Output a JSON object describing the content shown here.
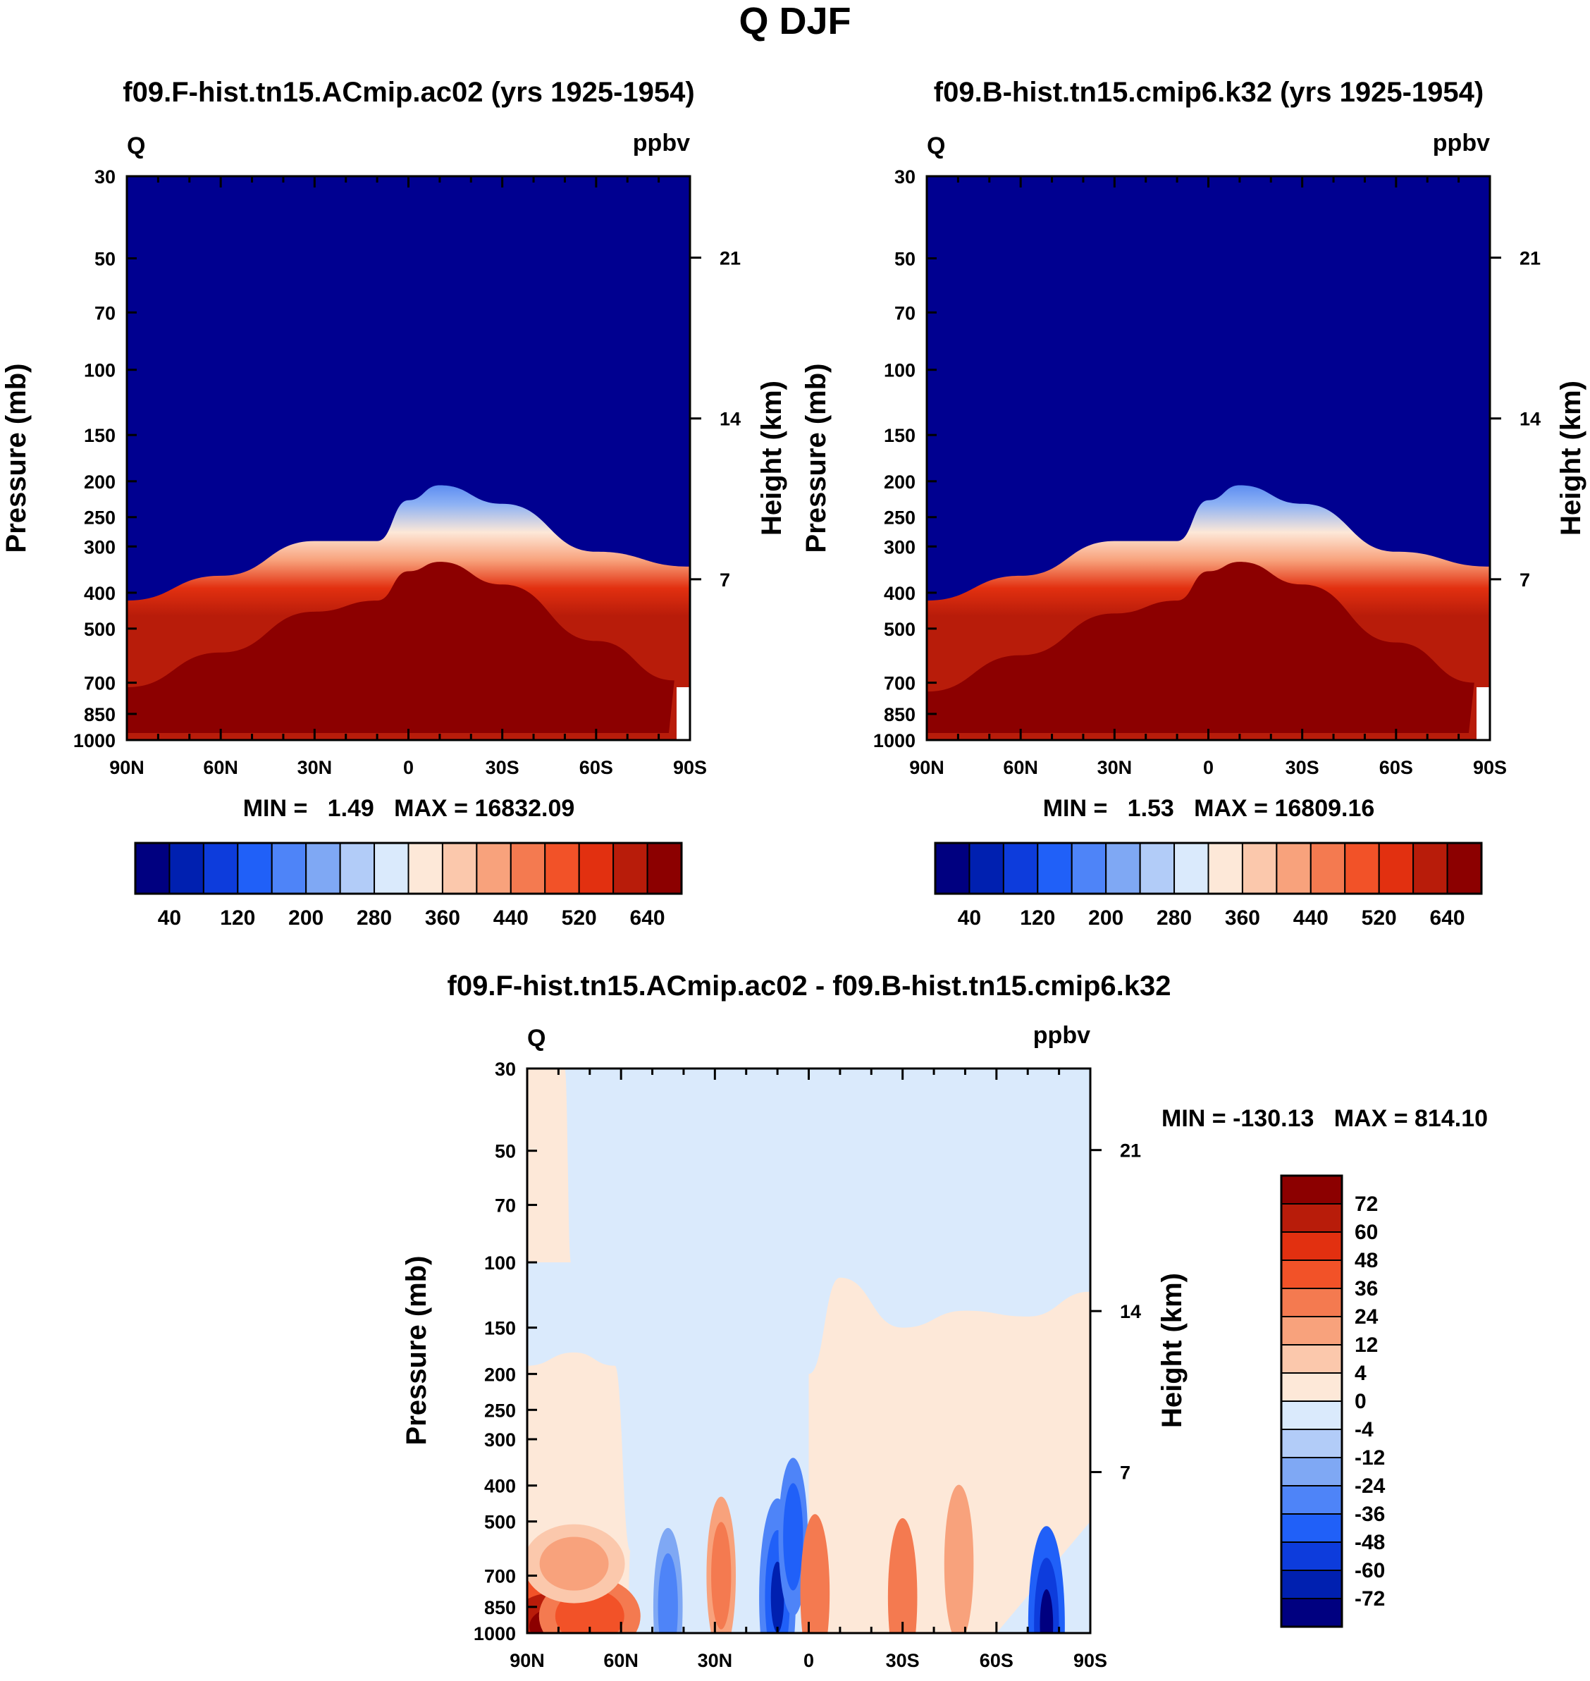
{
  "page_title": "Q DJF",
  "colors": {
    "ctrl_bar": [
      "#000080",
      "#0020b0",
      "#0d3cdc",
      "#2060f8",
      "#4e84f8",
      "#7fa8f4",
      "#b2ccf8",
      "#daeafc",
      "#fde8d8",
      "#fbc8ac",
      "#f8a27c",
      "#f47a50",
      "#f25228",
      "#e23010",
      "#b81c0a",
      "#8c0000"
    ],
    "diff_bar": [
      "#000080",
      "#0020b0",
      "#0d3cdc",
      "#2060f8",
      "#4e84f8",
      "#7fa8f4",
      "#b2ccf8",
      "#daeafc",
      "#fde8d8",
      "#fbc8ac",
      "#f8a27c",
      "#f47a50",
      "#f25228",
      "#e23010",
      "#b81c0a",
      "#8c0000"
    ]
  },
  "chart_data": [
    {
      "type": "heatmap",
      "title": "f09.F-hist.tn15.ACmip.ac02 (yrs 1925-1954)",
      "variable": "Q",
      "units": "ppbv",
      "ylabel": "Pressure (mb)",
      "y2label": "Height (km)",
      "x_ticks": [
        "90N",
        "60N",
        "30N",
        "0",
        "30S",
        "60S",
        "90S"
      ],
      "y_ticks": [
        30,
        50,
        70,
        100,
        150,
        200,
        250,
        300,
        400,
        500,
        700,
        850,
        1000
      ],
      "y2_ticks": [
        21,
        14,
        7
      ],
      "stats": "MIN =   1.49   MAX = 16832.09",
      "colorbar_labels": [
        "40",
        "120",
        "200",
        "280",
        "360",
        "440",
        "520",
        "640"
      ],
      "interface_mb": [
        {
          "lat": 90,
          "p": 420
        },
        {
          "lat": 60,
          "p": 360
        },
        {
          "lat": 30,
          "p": 290
        },
        {
          "lat": 10,
          "p": 290
        },
        {
          "lat": 0,
          "p": 225
        },
        {
          "lat": -10,
          "p": 205
        },
        {
          "lat": -30,
          "p": 230
        },
        {
          "lat": -60,
          "p": 310
        },
        {
          "lat": -90,
          "p": 340
        }
      ],
      "moist_top_mb": [
        {
          "lat": 90,
          "p": 720
        },
        {
          "lat": 60,
          "p": 580
        },
        {
          "lat": 30,
          "p": 450
        },
        {
          "lat": 10,
          "p": 420
        },
        {
          "lat": 0,
          "p": 350
        },
        {
          "lat": -10,
          "p": 330
        },
        {
          "lat": -30,
          "p": 380
        },
        {
          "lat": -60,
          "p": 540
        },
        {
          "lat": -85,
          "p": 690
        }
      ]
    },
    {
      "type": "heatmap",
      "title": "f09.B-hist.tn15.cmip6.k32 (yrs 1925-1954)",
      "variable": "Q",
      "units": "ppbv",
      "ylabel": "Pressure (mb)",
      "y2label": "Height (km)",
      "x_ticks": [
        "90N",
        "60N",
        "30N",
        "0",
        "30S",
        "60S",
        "90S"
      ],
      "y_ticks": [
        30,
        50,
        70,
        100,
        150,
        200,
        250,
        300,
        400,
        500,
        700,
        850,
        1000
      ],
      "y2_ticks": [
        21,
        14,
        7
      ],
      "stats": "MIN =   1.53   MAX = 16809.16",
      "colorbar_labels": [
        "40",
        "120",
        "200",
        "280",
        "360",
        "440",
        "520",
        "640"
      ],
      "interface_mb": [
        {
          "lat": 90,
          "p": 420
        },
        {
          "lat": 60,
          "p": 360
        },
        {
          "lat": 30,
          "p": 290
        },
        {
          "lat": 10,
          "p": 290
        },
        {
          "lat": 0,
          "p": 225
        },
        {
          "lat": -10,
          "p": 205
        },
        {
          "lat": -30,
          "p": 230
        },
        {
          "lat": -60,
          "p": 310
        },
        {
          "lat": -90,
          "p": 340
        }
      ],
      "moist_top_mb": [
        {
          "lat": 90,
          "p": 740
        },
        {
          "lat": 60,
          "p": 590
        },
        {
          "lat": 30,
          "p": 455
        },
        {
          "lat": 10,
          "p": 420
        },
        {
          "lat": 0,
          "p": 350
        },
        {
          "lat": -10,
          "p": 330
        },
        {
          "lat": -30,
          "p": 380
        },
        {
          "lat": -60,
          "p": 545
        },
        {
          "lat": -85,
          "p": 700
        }
      ]
    },
    {
      "type": "heatmap",
      "title": "f09.F-hist.tn15.ACmip.ac02 - f09.B-hist.tn15.cmip6.k32",
      "variable": "Q",
      "units": "ppbv",
      "ylabel": "Pressure (mb)",
      "y2label": "Height (km)",
      "x_ticks": [
        "90N",
        "60N",
        "30N",
        "0",
        "30S",
        "60S",
        "90S"
      ],
      "y_ticks": [
        30,
        50,
        70,
        100,
        150,
        200,
        250,
        300,
        400,
        500,
        700,
        850,
        1000
      ],
      "y2_ticks": [
        21,
        14,
        7
      ],
      "stats": "MIN = -130.13   MAX = 814.10",
      "colorbar_labels": [
        "72",
        "60",
        "48",
        "36",
        "24",
        "12",
        "4",
        "0",
        "-4",
        "-12",
        "-24",
        "-36",
        "-48",
        "-60",
        "-72"
      ],
      "features": [
        {
          "lat": 82,
          "p": 960,
          "value": 80
        },
        {
          "lat": 70,
          "p": 900,
          "value": 40
        },
        {
          "lat": 75,
          "p": 650,
          "value": 15
        },
        {
          "lat": 28,
          "p": 700,
          "value": 30
        },
        {
          "lat": 10,
          "p": 800,
          "value": -60
        },
        {
          "lat": 5,
          "p": 550,
          "value": -36
        },
        {
          "lat": -2,
          "p": 780,
          "value": 36
        },
        {
          "lat": -30,
          "p": 800,
          "value": 36
        },
        {
          "lat": -48,
          "p": 650,
          "value": 24
        },
        {
          "lat": -76,
          "p": 950,
          "value": -72
        },
        {
          "lat": 45,
          "p": 850,
          "value": -24
        }
      ]
    }
  ]
}
